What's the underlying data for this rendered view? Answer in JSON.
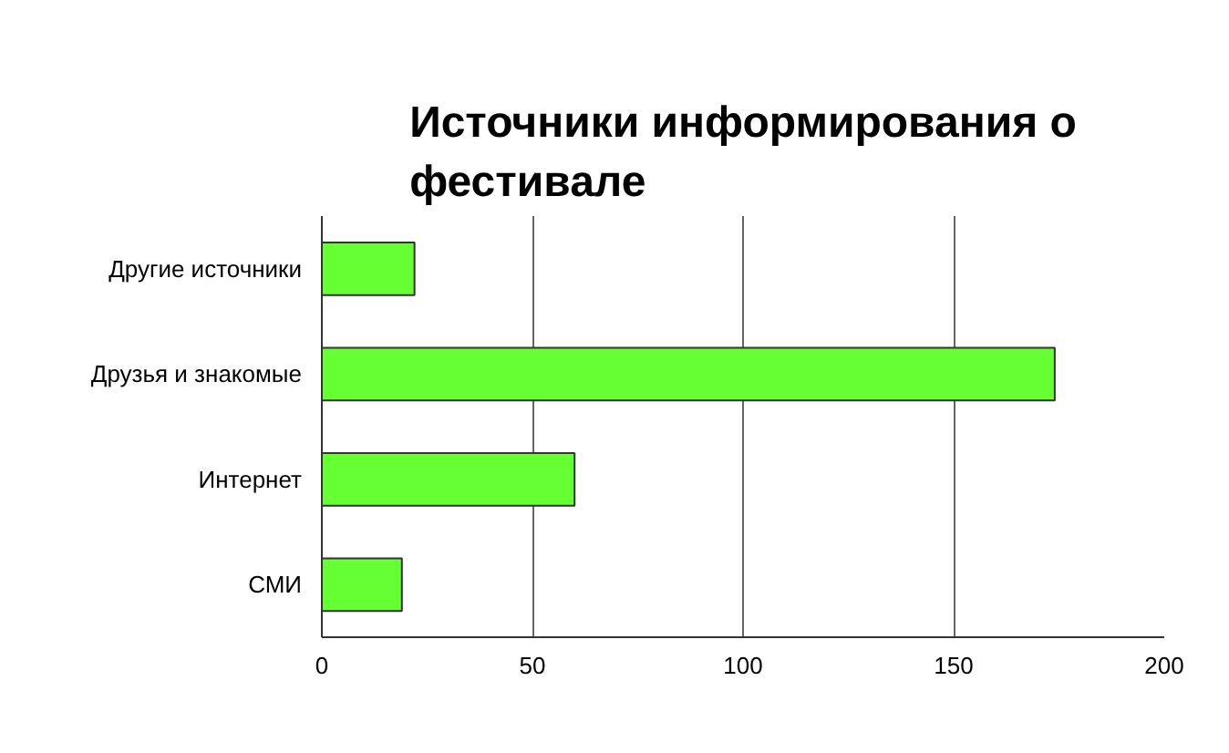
{
  "chart_data": {
    "type": "bar",
    "orientation": "horizontal",
    "title": "Источники информирования о фестивале",
    "categories": [
      "Другие источники",
      "Друзья и знакомые",
      "Интернет",
      "СМИ"
    ],
    "values": [
      22,
      174,
      60,
      19
    ],
    "color": "#66ff33",
    "xlim": [
      0,
      200
    ],
    "xticks": [
      0,
      50,
      100,
      150,
      200
    ],
    "grid": "x"
  }
}
